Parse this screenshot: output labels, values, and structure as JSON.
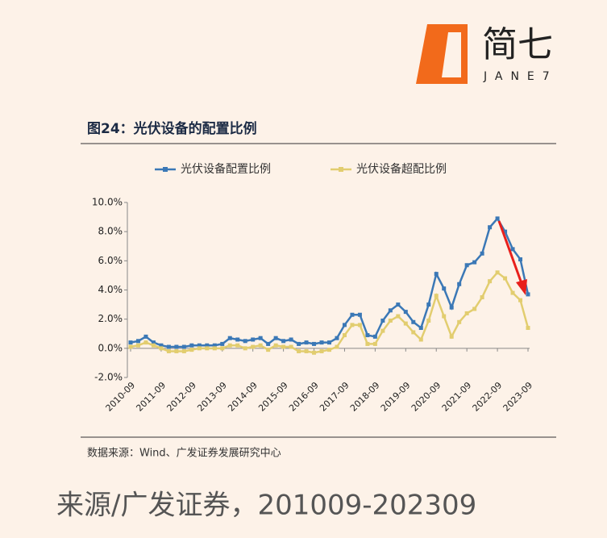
{
  "header": {
    "logo": "简七",
    "logo_sub": "JANE7"
  },
  "chart_data": {
    "type": "line",
    "title": "图24：光伏设备的配置比例",
    "categories": [
      "2010-09",
      null,
      null,
      null,
      "2011-09",
      null,
      null,
      null,
      "2012-09",
      null,
      null,
      null,
      "2013-09",
      null,
      null,
      null,
      "2014-09",
      null,
      null,
      null,
      "2015-09",
      null,
      null,
      null,
      "2016-09",
      null,
      null,
      null,
      "2017-09",
      null,
      null,
      null,
      "2018-09",
      null,
      null,
      null,
      "2019-09",
      null,
      null,
      null,
      "2020-09",
      null,
      null,
      null,
      "2021-09",
      null,
      null,
      null,
      "2022-09",
      null,
      null,
      null,
      "2023-09"
    ],
    "series": [
      {
        "name": "光伏设备配置比例",
        "color": "#3b78b6",
        "values": [
          0.4,
          0.5,
          0.8,
          0.4,
          0.2,
          0.1,
          0.1,
          0.1,
          0.2,
          0.2,
          0.2,
          0.2,
          0.3,
          0.7,
          0.6,
          0.5,
          0.6,
          0.7,
          0.3,
          0.7,
          0.5,
          0.6,
          0.3,
          0.4,
          0.3,
          0.4,
          0.4,
          0.7,
          1.6,
          2.3,
          2.3,
          0.9,
          0.8,
          1.9,
          2.6,
          3.0,
          2.5,
          1.8,
          1.4,
          3.0,
          5.1,
          4.1,
          2.8,
          4.4,
          5.7,
          5.9,
          6.5,
          8.3,
          8.9,
          8.0,
          6.8,
          6.1,
          3.7
        ]
      },
      {
        "name": "光伏设备超配比例",
        "color": "#e2cd6f",
        "values": [
          0.1,
          0.2,
          0.4,
          0.2,
          0.0,
          -0.2,
          -0.2,
          -0.2,
          -0.1,
          0.0,
          0.0,
          0.0,
          0.0,
          0.2,
          0.2,
          0.0,
          0.1,
          0.2,
          -0.1,
          0.2,
          0.1,
          0.1,
          -0.2,
          -0.2,
          -0.3,
          -0.2,
          -0.1,
          0.1,
          0.9,
          1.6,
          1.6,
          0.3,
          0.3,
          1.2,
          1.9,
          2.2,
          1.7,
          1.1,
          0.6,
          1.9,
          3.6,
          2.2,
          0.8,
          1.8,
          2.4,
          2.7,
          3.5,
          4.6,
          5.2,
          4.8,
          3.8,
          3.3,
          1.4
        ]
      }
    ],
    "ylim": [
      -2,
      10
    ],
    "yticks": [
      {
        "value": -2,
        "label": "-2.0%"
      },
      {
        "value": 0,
        "label": "0.0%"
      },
      {
        "value": 2,
        "label": "2.0%"
      },
      {
        "value": 4,
        "label": "4.0%"
      },
      {
        "value": 6,
        "label": "6.0%"
      },
      {
        "value": 8,
        "label": "8.0%"
      },
      {
        "value": 10,
        "label": "10.0%"
      }
    ],
    "legend": "top",
    "source": "数据来源：Wind、广发证券发展研究中心"
  },
  "footer": {
    "caption": "来源/广发证券，201009-202309"
  }
}
